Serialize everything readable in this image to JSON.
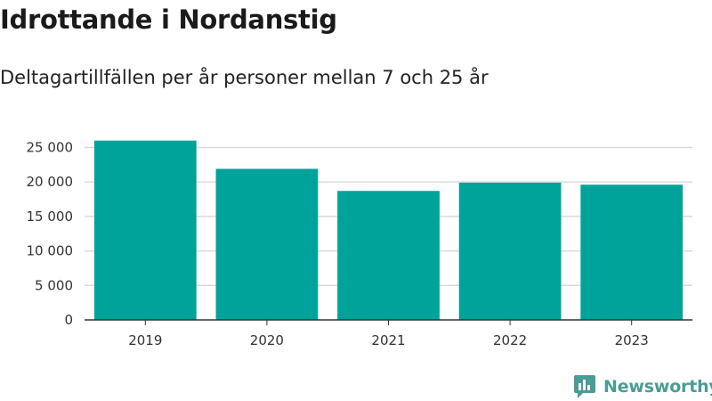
{
  "header": {
    "title": "Idrottande i Nordanstig",
    "subtitle": "Deltagartillfällen per år personer mellan 7 och 25 år"
  },
  "brand": {
    "name": "Newsworthy",
    "color": "#4a9c96",
    "icon": "newsworthy-logo-icon"
  },
  "chart_data": {
    "type": "bar",
    "categories": [
      "2019",
      "2020",
      "2021",
      "2022",
      "2023"
    ],
    "values": [
      26000,
      21900,
      18700,
      19900,
      19600
    ],
    "ylim": [
      0,
      27000
    ],
    "yticks": [
      0,
      5000,
      10000,
      15000,
      20000,
      25000
    ],
    "ytick_labels": [
      "0",
      "5 000",
      "10 000",
      "15 000",
      "20 000",
      "25 000"
    ],
    "grid": true,
    "legend": "none",
    "bar_color": "#00a39a",
    "grid_color": "#d9d9d9",
    "axis_color": "#333333"
  }
}
